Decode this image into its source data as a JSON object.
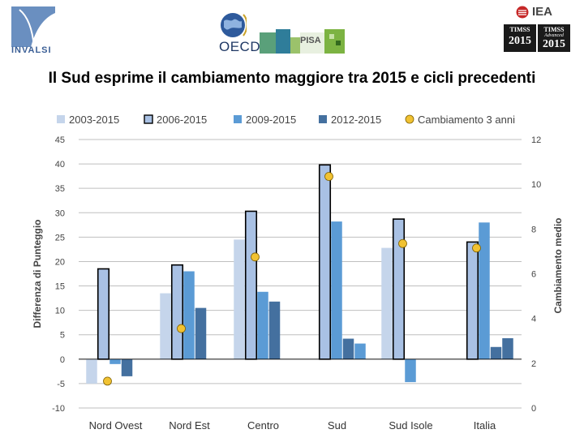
{
  "header": {
    "invalsi_label": "INVALSI",
    "oecd_label": "OECD",
    "pisa_label": "PISA",
    "iea_label": "IEA",
    "timss_badges": [
      {
        "name": "TIMSS",
        "year": "2015",
        "sub": ""
      },
      {
        "name": "TIMSS",
        "year": "2015",
        "sub": "Advanced"
      }
    ]
  },
  "colors": {
    "s2003": "#c5d5eb",
    "s2006": "#a9c1e4",
    "s2009": "#5b9bd5",
    "s2012": "#44709f",
    "marker": "#f1c232",
    "axis": "#bfbfbf",
    "text": "#444444"
  },
  "chart_data": {
    "type": "bar",
    "title": "Il Sud esprime il cambiamento maggiore tra 2015 e cicli precedenti",
    "ylabel": "Differenza di Punteggio",
    "y2label": "Cambiamento medio",
    "ylim": [
      -10,
      45
    ],
    "y2lim": [
      0,
      12
    ],
    "yticks": [
      "45",
      "40",
      "35",
      "30",
      "25",
      "20",
      "15",
      "10",
      "5",
      "0",
      "-5",
      "-10"
    ],
    "y2ticks": [
      "12",
      "10",
      "8",
      "6",
      "4",
      "2",
      "0"
    ],
    "categories": [
      "Nord Ovest",
      "Nord Est",
      "Centro",
      "Sud",
      "Sud Isole",
      "Italia"
    ],
    "series": [
      {
        "name": "2003-2015",
        "key": "s2003",
        "outlined": false,
        "values": [
          -5,
          13.5,
          24.5,
          null,
          22.8,
          null
        ]
      },
      {
        "name": "2006-2015",
        "key": "s2006",
        "outlined": true,
        "values": [
          18.5,
          19.3,
          30.3,
          39.8,
          28.7,
          24
        ]
      },
      {
        "name": "2009-2015",
        "key": "s2009",
        "outlined": false,
        "values": [
          -1,
          18,
          13.8,
          28.2,
          -4.7,
          28
        ]
      },
      {
        "name": "2012-2015",
        "key": "s2012",
        "outlined": false,
        "values": [
          -3.5,
          10.5,
          11.8,
          4.2,
          null,
          2.5
        ]
      }
    ],
    "extra_bars": [
      {
        "category": "Sud",
        "series": "2009-2015",
        "value": 3.2
      },
      {
        "category": "Italia",
        "series": "2012-2015",
        "value": 4.3
      }
    ],
    "marker_series": {
      "name": "Cambiamento 3 anni",
      "axis": "secondary",
      "values": [
        1.2,
        3.55,
        6.75,
        10.35,
        7.35,
        7.15
      ]
    }
  }
}
